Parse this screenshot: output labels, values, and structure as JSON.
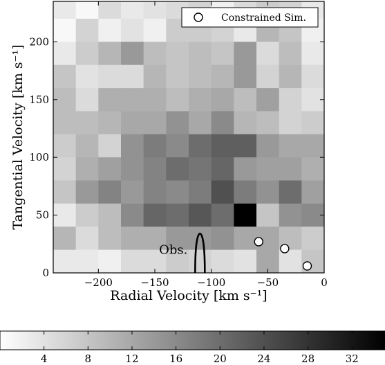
{
  "chart_data": [
    {
      "type": "heatmap",
      "xlabel": "Radial Velocity [km s⁻¹]",
      "ylabel": "Tangential Velocity [km s⁻¹]",
      "xlim": [
        -240,
        0
      ],
      "ylim": [
        0,
        235
      ],
      "x_ticks": [
        -200,
        -150,
        -100,
        -50,
        0
      ],
      "y_ticks": [
        0,
        50,
        100,
        150,
        200
      ],
      "x_tick_labels": [
        "−200",
        "−150",
        "−100",
        "−50",
        "0"
      ],
      "y_tick_labels": [
        "0",
        "50",
        "100",
        "150",
        "200"
      ],
      "grid": false,
      "colormap": "gray_r",
      "x_bin_edges": [
        -240,
        -220,
        -200,
        -180,
        -160,
        -140,
        -120,
        -100,
        -80,
        -60,
        -40,
        -20,
        0
      ],
      "y_bin_edges": [
        0,
        20,
        40,
        60,
        80,
        100,
        120,
        140,
        160,
        180,
        200,
        220,
        240
      ],
      "counts_rows_top_to_bottom": [
        [
          3,
          1,
          5,
          3,
          4,
          5,
          6,
          2,
          5,
          7,
          6,
          3
        ],
        [
          1,
          6,
          2,
          4,
          2,
          7,
          7,
          6,
          3,
          10,
          8,
          2
        ],
        [
          3,
          7,
          10,
          14,
          9,
          8,
          9,
          8,
          14,
          5,
          9,
          3
        ],
        [
          8,
          4,
          5,
          5,
          10,
          8,
          9,
          10,
          14,
          6,
          10,
          5
        ],
        [
          9,
          5,
          11,
          11,
          11,
          9,
          11,
          12,
          9,
          13,
          6,
          4
        ],
        [
          9,
          9,
          10,
          12,
          12,
          15,
          12,
          16,
          10,
          9,
          6,
          7
        ],
        [
          7,
          10,
          6,
          15,
          18,
          16,
          20,
          22,
          22,
          14,
          12,
          12
        ],
        [
          6,
          11,
          13,
          15,
          17,
          20,
          19,
          21,
          14,
          13,
          13,
          11
        ],
        [
          8,
          14,
          17,
          14,
          17,
          16,
          18,
          24,
          18,
          15,
          20,
          13
        ],
        [
          3,
          7,
          9,
          16,
          21,
          20,
          23,
          20,
          35,
          8,
          15,
          16
        ],
        [
          10,
          5,
          9,
          11,
          11,
          14,
          14,
          15,
          12,
          12,
          9,
          7
        ],
        [
          3,
          3,
          2,
          5,
          5,
          7,
          6,
          5,
          4,
          12,
          4,
          8
        ]
      ],
      "legend": {
        "label": "Constrained Sim.",
        "position": "top-right"
      },
      "constrained_sim_points": [
        {
          "x": -58,
          "y": 27
        },
        {
          "x": -35,
          "y": 21
        },
        {
          "x": -15,
          "y": 6
        }
      ],
      "annotation": {
        "label": "Obs.",
        "x": -110,
        "y": 34
      }
    },
    {
      "type": "colorbar",
      "orientation": "horizontal",
      "range": [
        0,
        35
      ],
      "ticks": [
        4,
        8,
        12,
        16,
        20,
        24,
        28,
        32
      ],
      "tick_labels": [
        "4",
        "8",
        "12",
        "16",
        "20",
        "24",
        "28",
        "32"
      ]
    }
  ]
}
